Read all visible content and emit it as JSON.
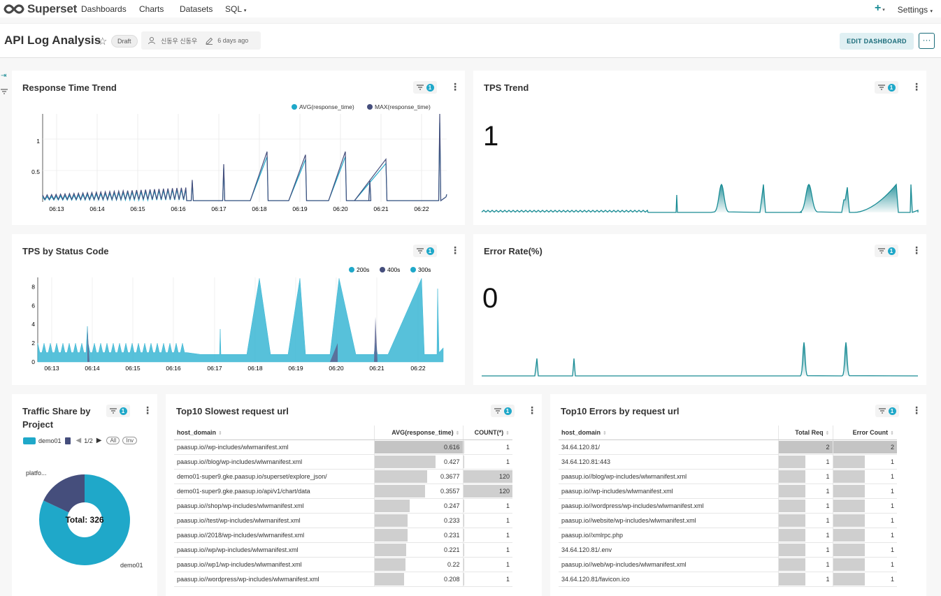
{
  "nav": {
    "brand": "Superset",
    "items": [
      "Dashboards",
      "Charts",
      "Datasets",
      "SQL"
    ],
    "plus": "+",
    "settings": "Settings"
  },
  "dashboard": {
    "title": "API Log Analysis",
    "status": "Draft",
    "owner": "신동우 신동우",
    "modified": "6 days ago",
    "edit_label": "EDIT DASHBOARD",
    "more_label": "···"
  },
  "filter_count": "1",
  "charts": {
    "response_time": {
      "title": "Response Time Trend",
      "legend": [
        {
          "name": "AVG(response_time)",
          "color": "#1fa8c9"
        },
        {
          "name": "MAX(response_time)",
          "color": "#454e7c"
        }
      ],
      "chart_data": {
        "type": "line",
        "x_ticks": [
          "06:13",
          "06:14",
          "06:15",
          "06:16",
          "06:17",
          "06:18",
          "06:19",
          "06:20",
          "06:21",
          "06:22"
        ],
        "y_ticks": [
          "0.5",
          "1"
        ],
        "ylim": [
          0,
          1.4
        ],
        "series": [
          {
            "name": "AVG(response_time)",
            "color": "#1fa8c9",
            "approx_peaks": [
              0.2,
              0.2,
              0.2,
              0.3,
              0.6,
              0.75,
              0.7,
              0.6,
              0.6,
              0.6
            ]
          },
          {
            "name": "MAX(response_time)",
            "color": "#454e7c",
            "approx_peaks": [
              0.22,
              0.22,
              0.25,
              0.3,
              0.6,
              0.8,
              0.8,
              0.8,
              0.68,
              1.4
            ]
          }
        ]
      }
    },
    "tps_trend": {
      "title": "TPS Trend",
      "value": "1",
      "color": "#1a8c95"
    },
    "tps_status": {
      "title": "TPS by Status Code",
      "legend": [
        {
          "name": "200s",
          "color": "#1fa8c9"
        },
        {
          "name": "400s",
          "color": "#454e7c"
        },
        {
          "name": "300s",
          "color": "#5ac189"
        }
      ],
      "chart_data": {
        "type": "area",
        "x_ticks": [
          "06:13",
          "06:14",
          "06:15",
          "06:16",
          "06:17",
          "06:18",
          "06:19",
          "06:20",
          "06:21",
          "06:22"
        ],
        "y_ticks": [
          "0",
          "2",
          "4",
          "6",
          "8"
        ],
        "ylim": [
          0,
          9
        ],
        "series": [
          {
            "name": "200s",
            "color": "#1fa8c9"
          },
          {
            "name": "400s",
            "color": "#454e7c"
          },
          {
            "name": "300s",
            "color": "#5ac189"
          }
        ]
      }
    },
    "error_rate": {
      "title": "Error Rate(%)",
      "value": "0",
      "color": "#1a8c95"
    },
    "traffic_share": {
      "title_line1": "Traffic Share by",
      "title_line2": "Project",
      "legend_item": "demo01",
      "page": "1/2",
      "all_label": "All",
      "inv_label": "Inv",
      "center_label": "Total: 326",
      "slice_labels": [
        "platfo...",
        "demo01"
      ],
      "chart_data": {
        "type": "pie",
        "slices": [
          {
            "name": "demo01",
            "value": 0.82,
            "color": "#1fa8c9"
          },
          {
            "name": "platfo...",
            "value": 0.18,
            "color": "#454e7c"
          }
        ]
      }
    },
    "slowest": {
      "title": "Top10 Slowest request url",
      "columns": [
        "host_domain",
        "AVG(response_time)",
        "COUNT(*)"
      ],
      "rows": [
        [
          "paasup.io//wp-includes/wlwmanifest.xml",
          "0.616",
          "1"
        ],
        [
          "paasup.io//blog/wp-includes/wlwmanifest.xml",
          "0.427",
          "1"
        ],
        [
          "demo01-super9.gke.paasup.io/superset/explore_json/",
          "0.3677",
          "120"
        ],
        [
          "demo01-super9.gke.paasup.io/api/v1/chart/data",
          "0.3557",
          "120"
        ],
        [
          "paasup.io//shop/wp-includes/wlwmanifest.xml",
          "0.247",
          "1"
        ],
        [
          "paasup.io//test/wp-includes/wlwmanifest.xml",
          "0.233",
          "1"
        ],
        [
          "paasup.io//2018/wp-includes/wlwmanifest.xml",
          "0.231",
          "1"
        ],
        [
          "paasup.io//wp/wp-includes/wlwmanifest.xml",
          "0.221",
          "1"
        ],
        [
          "paasup.io//wp1/wp-includes/wlwmanifest.xml",
          "0.22",
          "1"
        ],
        [
          "paasup.io//wordpress/wp-includes/wlwmanifest.xml",
          "0.208",
          "1"
        ]
      ]
    },
    "errors": {
      "title": "Top10 Errors by request url",
      "columns": [
        "host_domain",
        "Total Req",
        "Error Count"
      ],
      "rows": [
        [
          "34.64.120.81/",
          "2",
          "2"
        ],
        [
          "34.64.120.81:443",
          "1",
          "1"
        ],
        [
          "paasup.io//blog/wp-includes/wlwmanifest.xml",
          "1",
          "1"
        ],
        [
          "paasup.io//wp-includes/wlwmanifest.xml",
          "1",
          "1"
        ],
        [
          "paasup.io//wordpress/wp-includes/wlwmanifest.xml",
          "1",
          "1"
        ],
        [
          "paasup.io//website/wp-includes/wlwmanifest.xml",
          "1",
          "1"
        ],
        [
          "paasup.io//xmlrpc.php",
          "1",
          "1"
        ],
        [
          "34.64.120.81/.env",
          "1",
          "1"
        ],
        [
          "paasup.io//web/wp-includes/wlwmanifest.xml",
          "1",
          "1"
        ],
        [
          "34.64.120.81/favicon.ico",
          "1",
          "1"
        ]
      ]
    }
  }
}
